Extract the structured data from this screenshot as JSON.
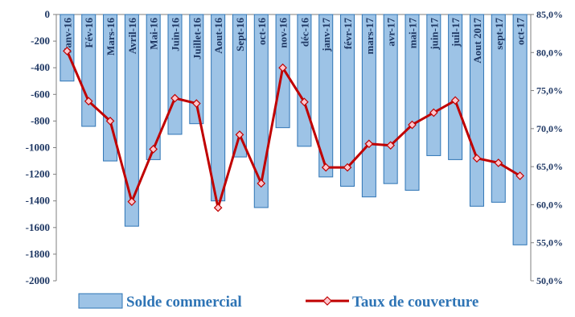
{
  "chart_data": {
    "type": "bar",
    "title": "",
    "categories": [
      "Janv-16",
      "Fév-16",
      "Mars-16",
      "Avril-16",
      "Mai-16",
      "Juin-16",
      "Juillet-16",
      "Aout-16",
      "Sept-16",
      "oct-16",
      "nov-16",
      "déc-16",
      "janv-17",
      "févr-17",
      "mars-17",
      "avr-17",
      "mai-17",
      "juin-17",
      "juil-17",
      "Aout 2017",
      "sept-17",
      "oct-17"
    ],
    "series": [
      {
        "name": "Solde commercial",
        "type": "bar",
        "axis": "left",
        "values": [
          -500,
          -840,
          -1100,
          -1590,
          -1090,
          -900,
          -820,
          -1400,
          -1070,
          -1450,
          -850,
          -990,
          -1220,
          -1290,
          -1370,
          -1270,
          -1320,
          -1060,
          -1090,
          -1440,
          -1410,
          -1730
        ]
      },
      {
        "name": "Taux de couverture",
        "type": "line",
        "axis": "right",
        "values": [
          80.2,
          73.6,
          71.0,
          60.4,
          67.3,
          74.0,
          73.3,
          59.6,
          69.2,
          62.8,
          78.0,
          73.5,
          64.9,
          64.9,
          68.0,
          67.8,
          70.5,
          72.1,
          73.7,
          66.1,
          65.5,
          63.8
        ]
      }
    ],
    "y_left": {
      "min": -2000,
      "max": 0,
      "step": 200,
      "tick_labels": [
        "0",
        "-200",
        "-400",
        "-600",
        "-800",
        "-1000",
        "-1200",
        "-1400",
        "-1600",
        "-1800",
        "-2000"
      ]
    },
    "y_right": {
      "min": 50,
      "max": 85,
      "step": 5,
      "tick_labels": [
        "85,0%",
        "80,0%",
        "75,0%",
        "70,0%",
        "65,0%",
        "60,0%",
        "55,0%",
        "50,0%"
      ]
    },
    "grid": false,
    "legend_position": "bottom",
    "colors": {
      "bar_fill": "#9dc3e6",
      "bar_stroke": "#2e74b5",
      "line": "#c00000",
      "marker_fill": "#ffc7ce",
      "axis_text": "#1f3864",
      "legend_text": "#2e74b5"
    }
  }
}
